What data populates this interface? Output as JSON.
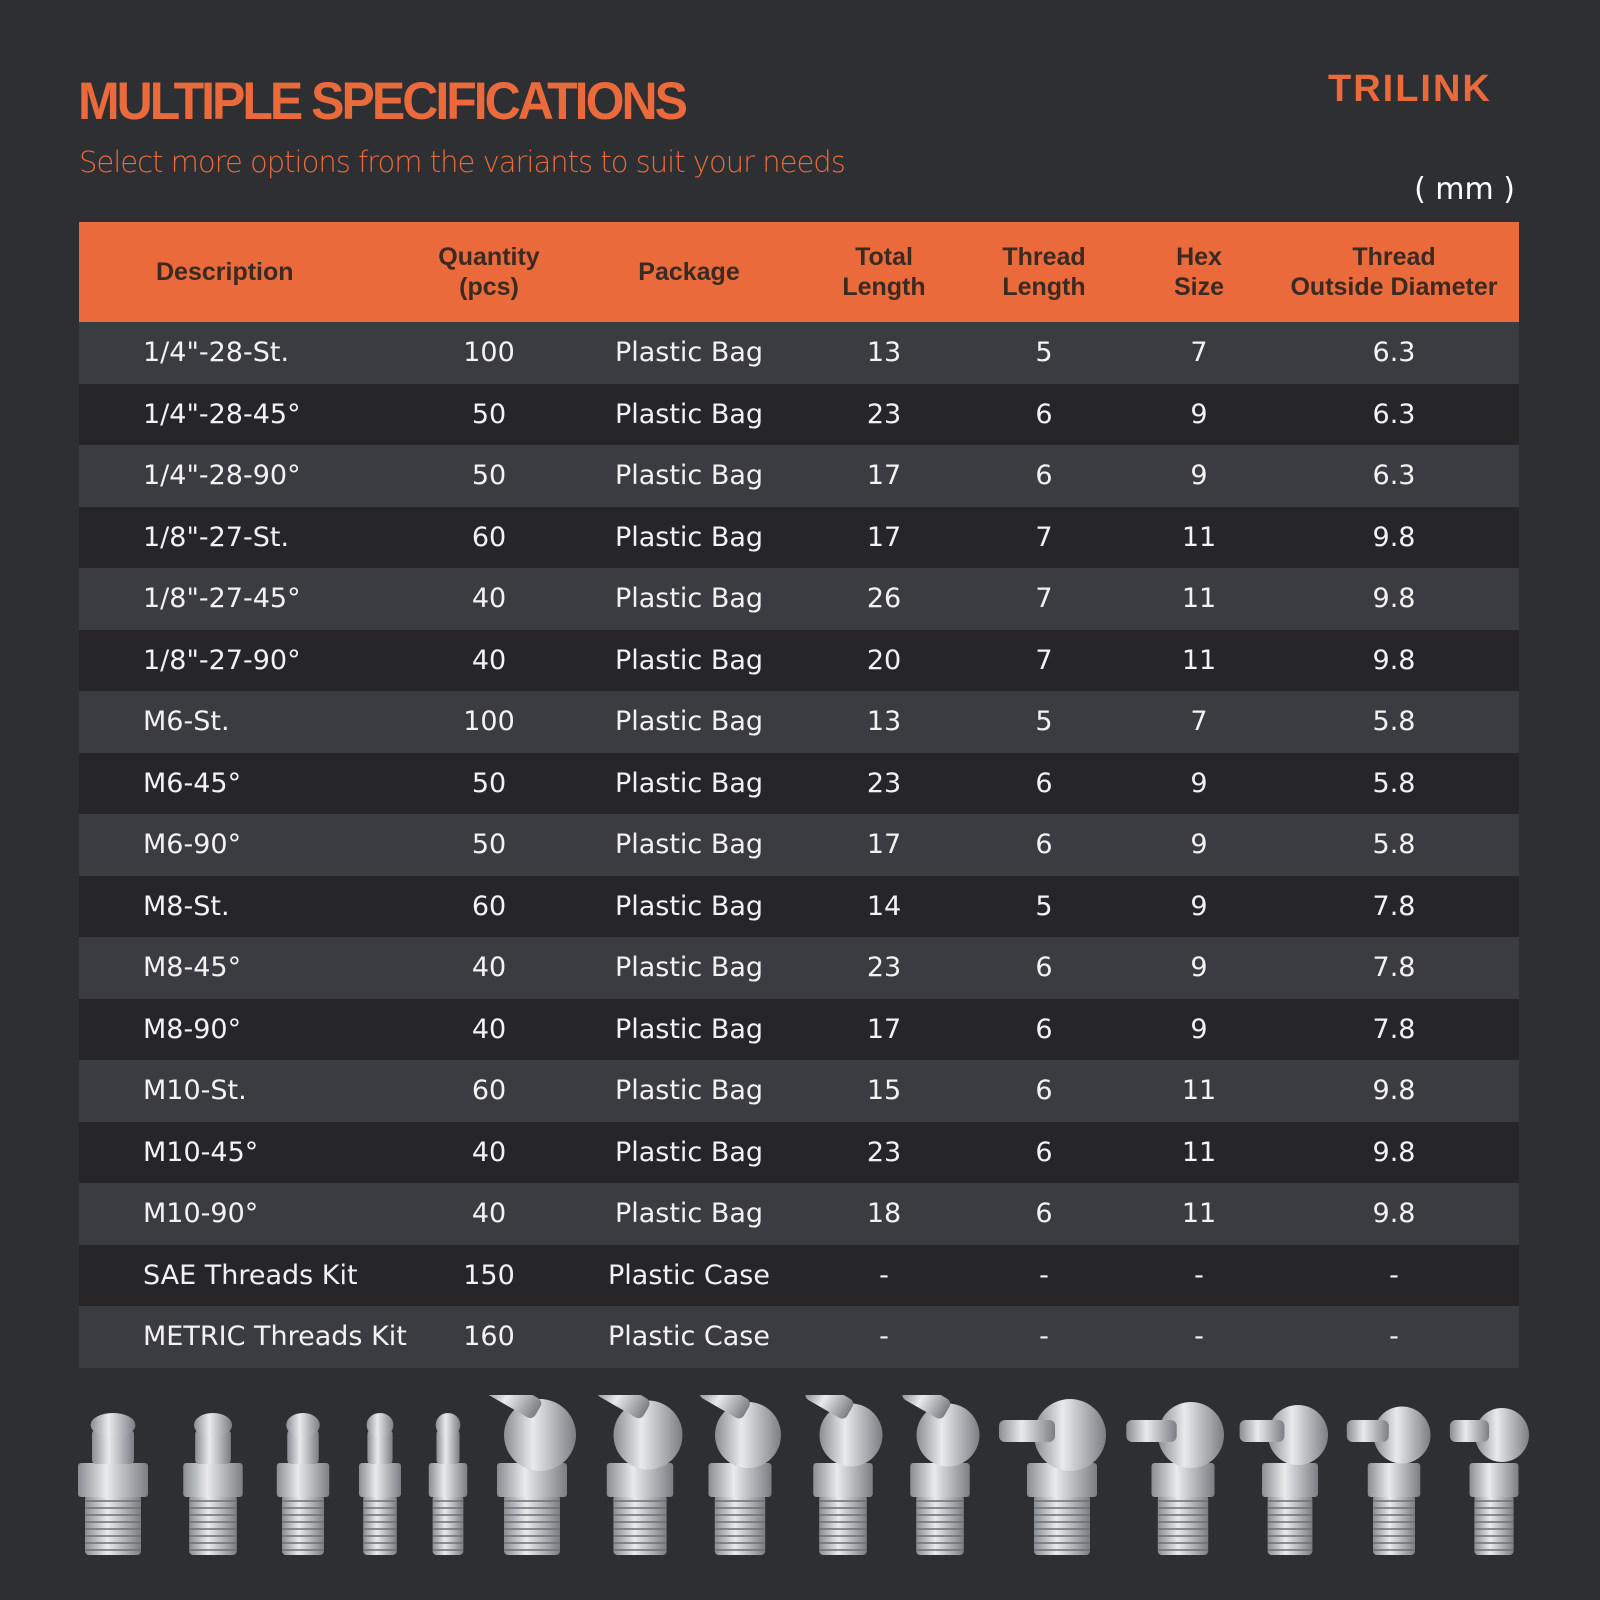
{
  "header": {
    "title": "MULTIPLE SPECIFICATIONS",
    "subtitle": "Select more options from the variants to suit your needs",
    "logo": "TRILINK",
    "unit": "( mm )"
  },
  "table": {
    "columns": [
      "Description",
      "Quantity\n(pcs)",
      "Package",
      "Total\nLength",
      "Thread\nLength",
      "Hex\nSize",
      "Thread\nOutside Diameter"
    ],
    "rows": [
      [
        "1/4\"-28-St.",
        100,
        "Plastic Bag",
        13,
        5,
        7,
        6.3
      ],
      [
        "1/4\"-28-45°",
        50,
        "Plastic Bag",
        23,
        6,
        9,
        6.3
      ],
      [
        "1/4\"-28-90°",
        50,
        "Plastic Bag",
        17,
        6,
        9,
        6.3
      ],
      [
        "1/8\"-27-St.",
        60,
        "Plastic Bag",
        17,
        7,
        11,
        9.8
      ],
      [
        "1/8\"-27-45°",
        40,
        "Plastic Bag",
        26,
        7,
        11,
        9.8
      ],
      [
        "1/8\"-27-90°",
        40,
        "Plastic Bag",
        20,
        7,
        11,
        9.8
      ],
      [
        "M6-St.",
        100,
        "Plastic Bag",
        13,
        5,
        7,
        5.8
      ],
      [
        "M6-45°",
        50,
        "Plastic Bag",
        23,
        6,
        9,
        5.8
      ],
      [
        "M6-90°",
        50,
        "Plastic Bag",
        17,
        6,
        9,
        5.8
      ],
      [
        "M8-St.",
        60,
        "Plastic Bag",
        14,
        5,
        9,
        7.8
      ],
      [
        "M8-45°",
        40,
        "Plastic Bag",
        23,
        6,
        9,
        7.8
      ],
      [
        "M8-90°",
        40,
        "Plastic Bag",
        17,
        6,
        9,
        7.8
      ],
      [
        "M10-St.",
        60,
        "Plastic Bag",
        15,
        6,
        11,
        9.8
      ],
      [
        "M10-45°",
        40,
        "Plastic Bag",
        23,
        6,
        11,
        9.8
      ],
      [
        "M10-90°",
        40,
        "Plastic Bag",
        18,
        6,
        11,
        9.8
      ],
      [
        "SAE Threads Kit",
        150,
        "Plastic Case",
        "-",
        "-",
        "-",
        "-"
      ],
      [
        "METRIC Threads Kit",
        160,
        "Plastic Case",
        "-",
        "-",
        "-",
        "-"
      ]
    ]
  }
}
